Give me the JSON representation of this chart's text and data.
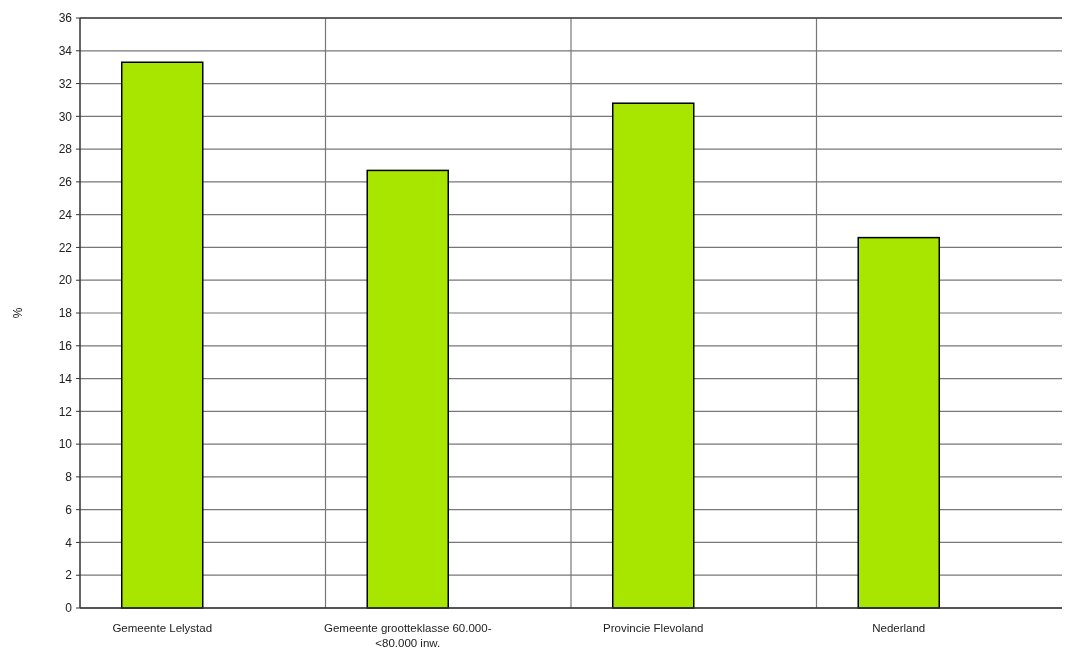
{
  "chart_data": {
    "type": "bar",
    "ylabel": "%",
    "categories": [
      "Gemeente Lelystad",
      "Gemeente grootteklasse 60.000-<80.000 inw.",
      "Provincie Flevoland",
      "Nederland"
    ],
    "values": [
      33.3,
      26.7,
      30.8,
      22.6
    ],
    "color": "#a8e600",
    "ylim": [
      0,
      36
    ],
    "yticks": [
      0,
      2,
      4,
      6,
      8,
      10,
      12,
      14,
      16,
      18,
      20,
      22,
      24,
      26,
      28,
      30,
      32,
      34,
      36
    ],
    "grid": true
  }
}
